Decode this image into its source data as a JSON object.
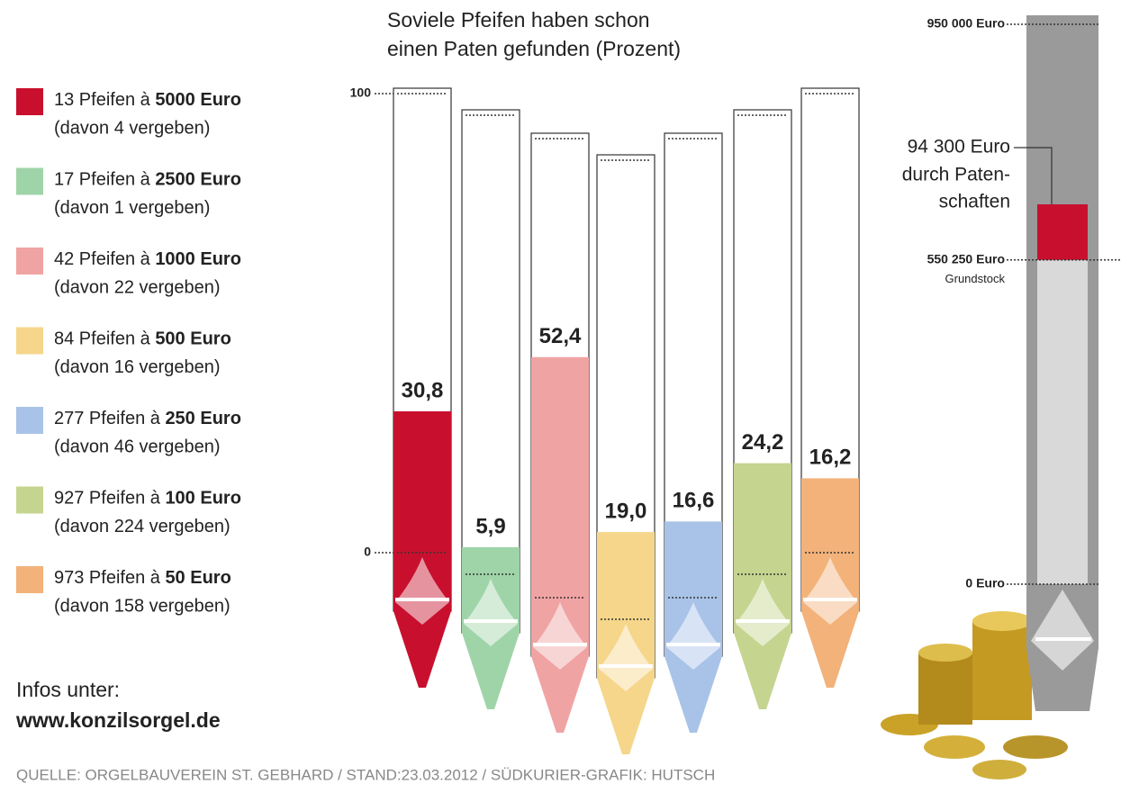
{
  "chart_data": [
    {
      "type": "pipes",
      "title_lines": [
        "Soviele Pfeifen haben schon",
        "einen Paten gefunden (Prozent)"
      ],
      "values": [
        30.8,
        5.9,
        52.4,
        19.0,
        16.6,
        24.2,
        16.2
      ],
      "value_labels": [
        "30,8",
        "5,9",
        "52,4",
        "19,0",
        "16,6",
        "24,2",
        "16,2"
      ],
      "colors": [
        "#c8102e",
        "#9fd4a8",
        "#f0a3a3",
        "#f5d68a",
        "#a9c3e8",
        "#c5d48f",
        "#f2b27a"
      ],
      "ylim": [
        0,
        100
      ],
      "yticks": [
        0,
        100
      ],
      "legend": [
        {
          "text": "13 Pfeifen à",
          "bold": "5000 Euro",
          "note": "(davon 4 vergeben)"
        },
        {
          "text": "17 Pfeifen à",
          "bold": "2500 Euro",
          "note": "(davon 1 vergeben)"
        },
        {
          "text": "42 Pfeifen à",
          "bold": "1000 Euro",
          "note": "(davon 22 vergeben)"
        },
        {
          "text": "84 Pfeifen à",
          "bold": "500 Euro",
          "note": "(davon 16 vergeben)"
        },
        {
          "text": "277 Pfeifen à",
          "bold": "250 Euro",
          "note": "(davon 46 vergeben)"
        },
        {
          "text": "927 Pfeifen à",
          "bold": "100 Euro",
          "note": "(davon 224 vergeben)"
        },
        {
          "text": "973 Pfeifen à",
          "bold": "50 Euro",
          "note": "(davon 158 vergeben)"
        }
      ]
    },
    {
      "type": "gauge",
      "ylim": [
        0,
        950000
      ],
      "yticks": [
        {
          "value": 0,
          "label": "0 Euro"
        },
        {
          "value": 550250,
          "label": "550 250 Euro"
        },
        {
          "value": 950000,
          "label": "950 000 Euro"
        }
      ],
      "segments": [
        {
          "value": 550250,
          "color": "#d9d9d9",
          "note_lines": [
            "Grundstock"
          ]
        },
        {
          "value": 94300,
          "color": "#c8102e",
          "value_label": "94 300 Euro",
          "note_lines": [
            "durch Paten-",
            "schaften"
          ]
        }
      ]
    }
  ],
  "info": {
    "label": "Infos unter:",
    "url": "www.konzilsorgel.de"
  },
  "source": "QUELLE: ORGELBAUVEREIN ST. GEBHARD / STAND:23.03.2012 / SÜDKURIER-GRAFIK: HUTSCH"
}
